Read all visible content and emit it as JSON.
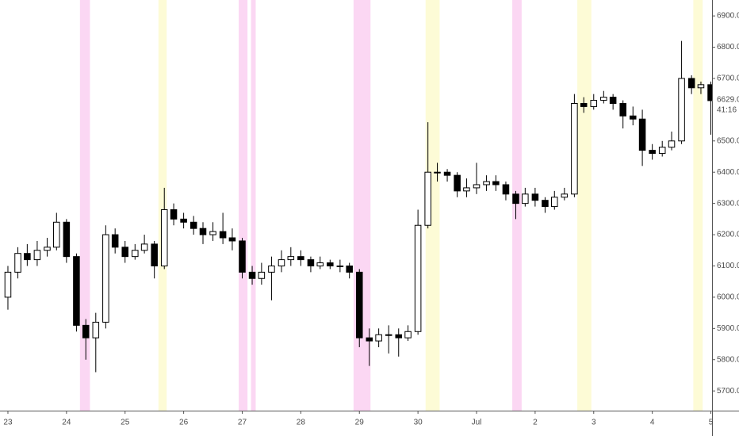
{
  "chart_data": {
    "type": "candlestick",
    "x": [
      23.0,
      23.17,
      23.33,
      23.5,
      23.67,
      23.83,
      24.0,
      24.17,
      24.33,
      24.5,
      24.67,
      24.83,
      25.0,
      25.17,
      25.33,
      25.5,
      25.67,
      25.83,
      26.0,
      26.17,
      26.33,
      26.5,
      26.67,
      26.83,
      27.0,
      27.17,
      27.33,
      27.5,
      27.67,
      27.83,
      28.0,
      28.17,
      28.33,
      28.5,
      28.67,
      28.83,
      29.0,
      29.17,
      29.33,
      29.5,
      29.67,
      29.83,
      30.0,
      30.17,
      30.33,
      30.5,
      30.67,
      30.83,
      31.0,
      31.17,
      31.33,
      31.5,
      31.67,
      31.83,
      32.0,
      32.17,
      32.33,
      32.5,
      32.67,
      32.83,
      33.0,
      33.17,
      33.33,
      33.5,
      33.67,
      33.83,
      34.0,
      34.17,
      34.33,
      34.5,
      34.67,
      34.83,
      35.0
    ],
    "open": [
      6000,
      6080,
      6140,
      6120,
      6150,
      6160,
      6240,
      6130,
      5910,
      5870,
      5920,
      6200,
      6160,
      6130,
      6150,
      6170,
      6100,
      6280,
      6250,
      6240,
      6220,
      6200,
      6210,
      6190,
      6180,
      6080,
      6060,
      6080,
      6100,
      6120,
      6130,
      6120,
      6100,
      6110,
      6100,
      6100,
      6080,
      5870,
      5860,
      5880,
      5880,
      5870,
      5890,
      6230,
      6400,
      6400,
      6390,
      6340,
      6350,
      6360,
      6370,
      6360,
      6330,
      6300,
      6330,
      6310,
      6290,
      6320,
      6330,
      6620,
      6610,
      6630,
      6640,
      6620,
      6580,
      6570,
      6470,
      6460,
      6480,
      6500,
      6700,
      6670,
      6680
    ],
    "high": [
      6100,
      6160,
      6170,
      6180,
      6190,
      6270,
      6250,
      6140,
      5930,
      5950,
      6230,
      6220,
      6180,
      6170,
      6200,
      6180,
      6350,
      6300,
      6270,
      6260,
      6240,
      6240,
      6270,
      6220,
      6190,
      6100,
      6110,
      6130,
      6150,
      6160,
      6150,
      6130,
      6130,
      6120,
      6120,
      6110,
      6090,
      5900,
      5900,
      5910,
      5900,
      5910,
      6280,
      6560,
      6430,
      6410,
      6400,
      6380,
      6430,
      6390,
      6390,
      6370,
      6340,
      6350,
      6350,
      6320,
      6340,
      6350,
      6650,
      6640,
      6650,
      6660,
      6650,
      6630,
      6610,
      6600,
      6490,
      6500,
      6530,
      6820,
      6710,
      6690,
      6690
    ],
    "low": [
      5960,
      6060,
      6100,
      6100,
      6130,
      6150,
      6110,
      5890,
      5800,
      5760,
      5900,
      6140,
      6110,
      6120,
      6140,
      6060,
      6090,
      6230,
      6220,
      6200,
      6170,
      6180,
      6170,
      6150,
      6060,
      6040,
      6040,
      5990,
      6080,
      6100,
      6100,
      6080,
      6090,
      6090,
      6080,
      6060,
      5840,
      5780,
      5840,
      5820,
      5810,
      5860,
      5880,
      6220,
      6370,
      6370,
      6320,
      6320,
      6330,
      6340,
      6340,
      6310,
      6250,
      6290,
      6290,
      6270,
      6280,
      6310,
      6320,
      6590,
      6600,
      6620,
      6600,
      6540,
      6550,
      6420,
      6440,
      6450,
      6470,
      6490,
      6650,
      6650,
      6520
    ],
    "close": [
      6080,
      6140,
      6120,
      6150,
      6160,
      6240,
      6130,
      5910,
      5870,
      5920,
      6200,
      6160,
      6130,
      6150,
      6170,
      6100,
      6280,
      6250,
      6240,
      6220,
      6200,
      6210,
      6190,
      6180,
      6080,
      6060,
      6080,
      6100,
      6120,
      6130,
      6120,
      6100,
      6110,
      6100,
      6100,
      6080,
      5870,
      5860,
      5880,
      5880,
      5870,
      5890,
      6230,
      6400,
      6400,
      6390,
      6340,
      6350,
      6360,
      6370,
      6360,
      6330,
      6300,
      6330,
      6310,
      6290,
      6320,
      6330,
      6620,
      6610,
      6630,
      6640,
      6620,
      6580,
      6570,
      6470,
      6460,
      6480,
      6500,
      6700,
      6670,
      6680,
      6629
    ],
    "up_color": "#ffffff",
    "down_color": "#000000",
    "wick_color": "#000000",
    "xlim": [
      22.865,
      35.02
    ],
    "ylim": [
      5637,
      6951
    ],
    "xticks": [
      23,
      24,
      25,
      26,
      27,
      28,
      29,
      30,
      {
        "value": 31,
        "label": "Jul"
      },
      {
        "value": 32,
        "label": "2"
      },
      {
        "value": 33,
        "label": "3"
      },
      {
        "value": 34,
        "label": "4"
      },
      {
        "value": 35,
        "label": "5"
      }
    ],
    "yticks": [
      {
        "value": 5700,
        "label": "5700.0"
      },
      {
        "value": 5800,
        "label": "5800.0"
      },
      {
        "value": 5900,
        "label": "5900.0"
      },
      {
        "value": 6000,
        "label": "6000.0"
      },
      {
        "value": 6100,
        "label": "6100.0"
      },
      {
        "value": 6200,
        "label": "6200.0"
      },
      {
        "value": 6300,
        "label": "6300.0"
      },
      {
        "value": 6400,
        "label": "6400.0"
      },
      {
        "value": 6500,
        "label": "6500.0"
      },
      {
        "value": 6600,
        "label": "6600.0"
      },
      {
        "value": 6700,
        "label": "6700.0"
      },
      {
        "value": 6800,
        "label": "6800.0"
      },
      {
        "value": 6900,
        "label": "6900.0"
      }
    ],
    "last_price": {
      "value": 6629,
      "label": "6629.0"
    },
    "countdown": "41:16",
    "highlight_bands": [
      {
        "from": 24.23,
        "to": 24.4,
        "color": "#fbd7f3"
      },
      {
        "from": 26.94,
        "to": 27.09,
        "color": "#fbd7f3"
      },
      {
        "from": 27.15,
        "to": 27.23,
        "color": "#fbd7f3"
      },
      {
        "from": 28.9,
        "to": 29.19,
        "color": "#fbd7f3"
      },
      {
        "from": 31.61,
        "to": 31.77,
        "color": "#fbd7f3"
      },
      {
        "from": 25.57,
        "to": 25.71,
        "color": "#fdfbd6"
      },
      {
        "from": 30.13,
        "to": 30.37,
        "color": "#fdfbd6"
      },
      {
        "from": 32.72,
        "to": 32.96,
        "color": "#fdfbd6"
      },
      {
        "from": 34.7,
        "to": 34.86,
        "color": "#fdfbd6"
      }
    ]
  }
}
